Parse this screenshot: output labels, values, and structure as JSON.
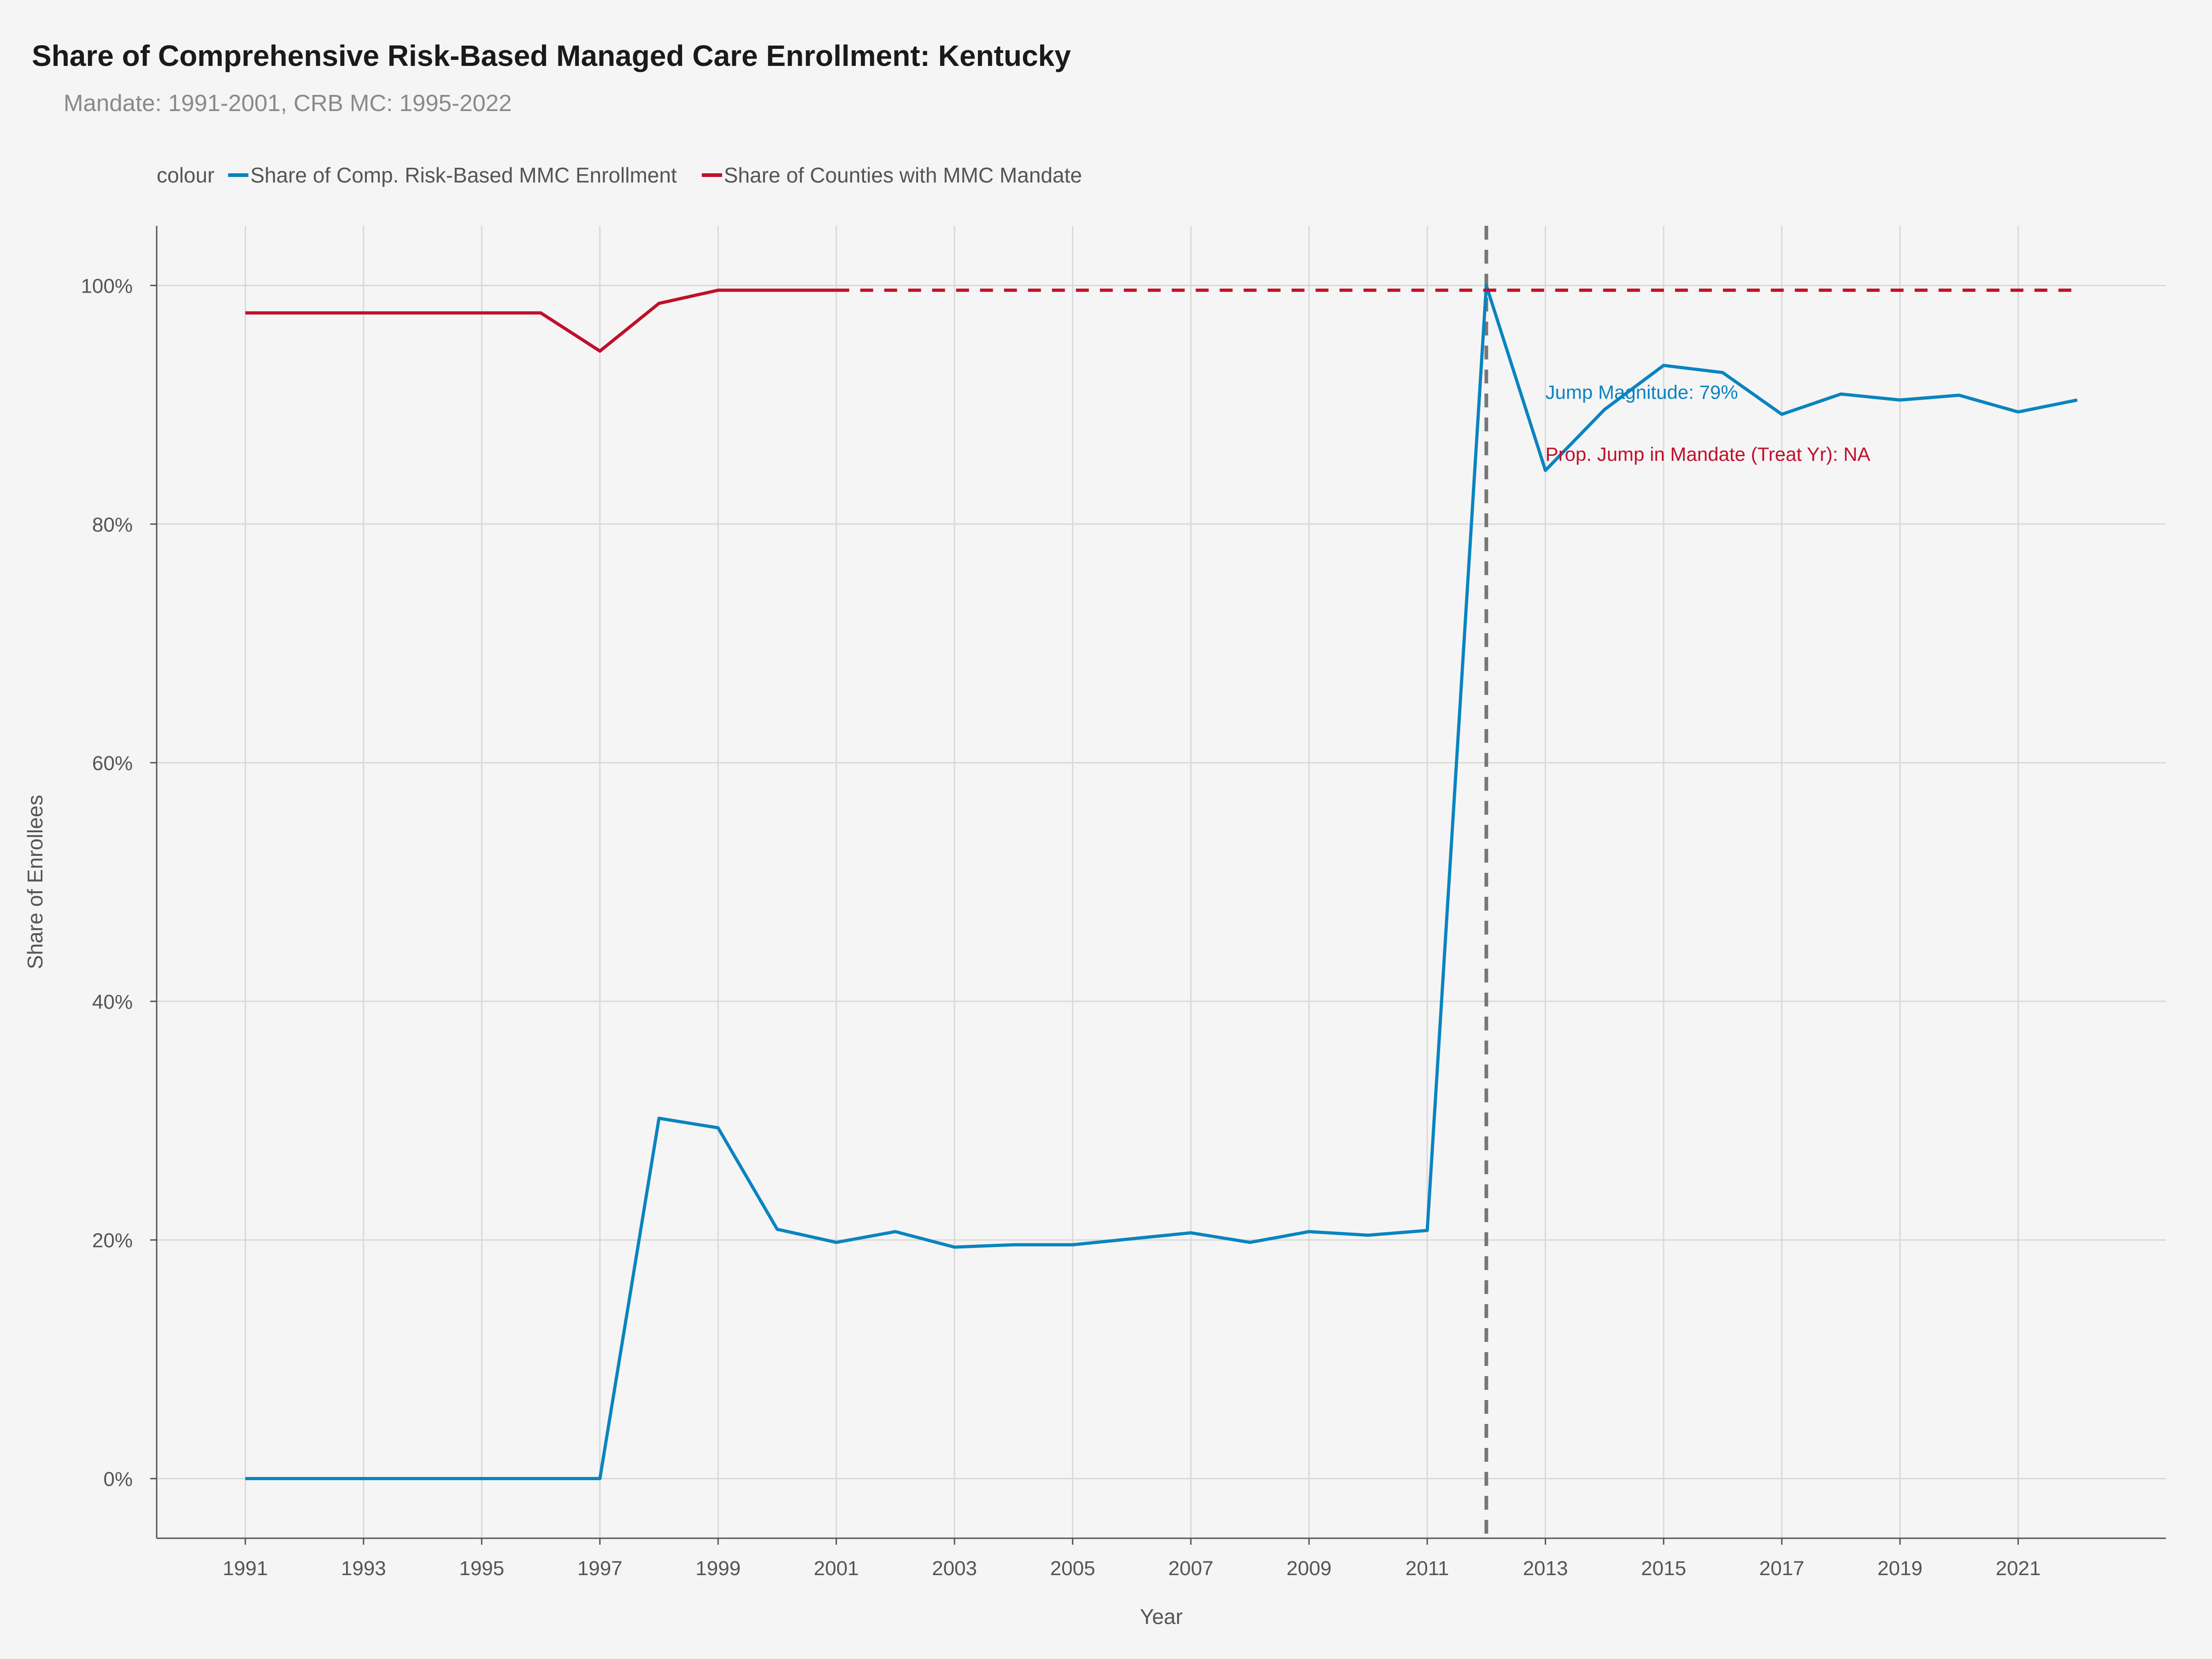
{
  "header": {
    "title": "Share of Comprehensive Risk-Based Managed Care Enrollment: Kentucky",
    "subtitle": "Mandate: 1991-2001, CRB MC: 1995-2022"
  },
  "legend": {
    "title": "colour",
    "items": [
      {
        "label": "Share of Comp. Risk-Based MMC Enrollment",
        "color": "#0a84c0"
      },
      {
        "label": "Share of Counties with MMC Mandate",
        "color": "#c0102a"
      }
    ]
  },
  "chart_data": {
    "type": "line",
    "xlabel": "Year",
    "ylabel": "Share of Enrollees",
    "xlim": [
      1989.5,
      2023.5
    ],
    "ylim": [
      -5,
      105
    ],
    "x_ticks": [
      1991,
      1993,
      1995,
      1997,
      1999,
      2001,
      2003,
      2005,
      2007,
      2009,
      2011,
      2013,
      2015,
      2017,
      2019,
      2021
    ],
    "y_ticks": [
      0,
      20,
      40,
      60,
      80,
      100
    ],
    "y_tick_labels": [
      "0%",
      "20%",
      "40%",
      "60%",
      "80%",
      "100%"
    ],
    "grid": true,
    "legend_position": "top-left",
    "series": [
      {
        "name": "Share of Comp. Risk-Based MMC Enrollment",
        "color": "#0a84c0",
        "style": "solid",
        "x": [
          1991,
          1992,
          1993,
          1994,
          1995,
          1996,
          1997,
          1998,
          1999,
          2000,
          2001,
          2002,
          2003,
          2004,
          2005,
          2006,
          2007,
          2008,
          2009,
          2010,
          2011,
          2012,
          2013,
          2014,
          2015,
          2016,
          2017,
          2018,
          2019,
          2020,
          2021,
          2022
        ],
        "values": [
          0,
          0,
          0,
          0,
          0,
          0,
          0,
          30.2,
          29.4,
          20.9,
          19.8,
          20.7,
          19.4,
          19.6,
          19.6,
          20.1,
          20.6,
          19.8,
          20.7,
          20.4,
          20.8,
          100,
          84.5,
          89.6,
          93.3,
          92.7,
          89.2,
          90.9,
          90.4,
          90.8,
          89.4,
          90.4
        ]
      },
      {
        "name": "Share of Counties with MMC Mandate",
        "color": "#c0102a",
        "style": "solid",
        "x": [
          1991,
          1992,
          1993,
          1994,
          1995,
          1996,
          1997,
          1998,
          1999,
          2000,
          2001
        ],
        "values": [
          97.7,
          97.7,
          97.7,
          97.7,
          97.7,
          97.7,
          94.5,
          98.5,
          99.6,
          99.6,
          99.6
        ]
      },
      {
        "color": "#c0102a",
        "style": "dashed",
        "x": [
          2001,
          2022
        ],
        "values": [
          99.6,
          99.6
        ]
      }
    ],
    "reference_line": {
      "x": 2012,
      "color": "#777777",
      "style": "dashed"
    },
    "annotations": [
      {
        "text": "Jump Magnitude: 79%",
        "x": 2013,
        "y": 90.5,
        "color": "#0a84c0"
      },
      {
        "text": "Prop. Jump in Mandate (Treat Yr): NA",
        "x": 2013,
        "y": 85.3,
        "color": "#c0102a"
      }
    ]
  }
}
